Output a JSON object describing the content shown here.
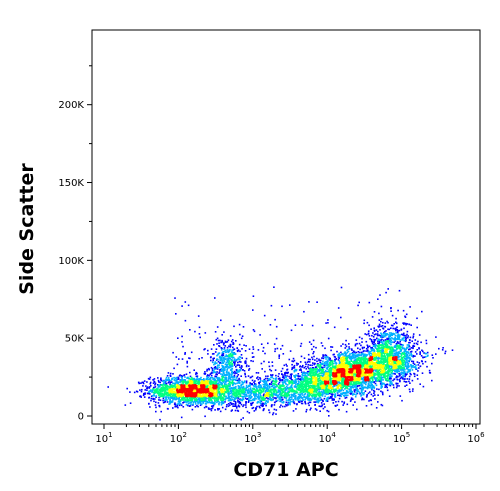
{
  "chart_data": {
    "type": "scatter",
    "style": "density-pseudocolor",
    "xlabel": "CD71 APC",
    "ylabel": "Side Scatter",
    "x_scale": "log",
    "xlim": [
      10,
      1000000
    ],
    "ylim": [
      0,
      230000
    ],
    "x_ticks": [
      {
        "value": 10,
        "base": "10",
        "exp": "1"
      },
      {
        "value": 100,
        "base": "10",
        "exp": "2"
      },
      {
        "value": 1000,
        "base": "10",
        "exp": "3"
      },
      {
        "value": 10000,
        "base": "10",
        "exp": "4"
      },
      {
        "value": 100000,
        "base": "10",
        "exp": "5"
      },
      {
        "value": 1000000,
        "base": "10",
        "exp": "6"
      }
    ],
    "y_ticks": [
      {
        "value": 0,
        "label": "0"
      },
      {
        "value": 50000,
        "label": "50K"
      },
      {
        "value": 100000,
        "label": "100K"
      },
      {
        "value": 150000,
        "label": "150K"
      },
      {
        "value": 200000,
        "label": "200K"
      }
    ],
    "grid": false,
    "density_colors": [
      "#0000ff",
      "#00b0ff",
      "#00ff80",
      "#ffff00",
      "#ff0000"
    ],
    "populations": [
      {
        "x_center": 150,
        "x_log_sd": 0.28,
        "y_center": 17000,
        "y_sd": 4500,
        "y_slope_per_decade": 0,
        "count": 1900
      },
      {
        "x_center": 450,
        "x_log_sd": 0.12,
        "y_center": 33000,
        "y_sd": 9000,
        "y_slope_per_decade": 0,
        "count": 450
      },
      {
        "x_center": 20000,
        "x_log_sd": 0.42,
        "y_center": 28000,
        "y_sd": 7000,
        "y_slope_per_decade": 9000,
        "count": 3400
      },
      {
        "x_center": 70000,
        "x_log_sd": 0.15,
        "y_center": 42000,
        "y_sd": 10000,
        "y_slope_per_decade": 0,
        "count": 700
      },
      {
        "x_center": 2000,
        "x_log_sd": 0.5,
        "y_center": 16000,
        "y_sd": 5000,
        "y_slope_per_decade": 3000,
        "count": 1300
      }
    ]
  }
}
